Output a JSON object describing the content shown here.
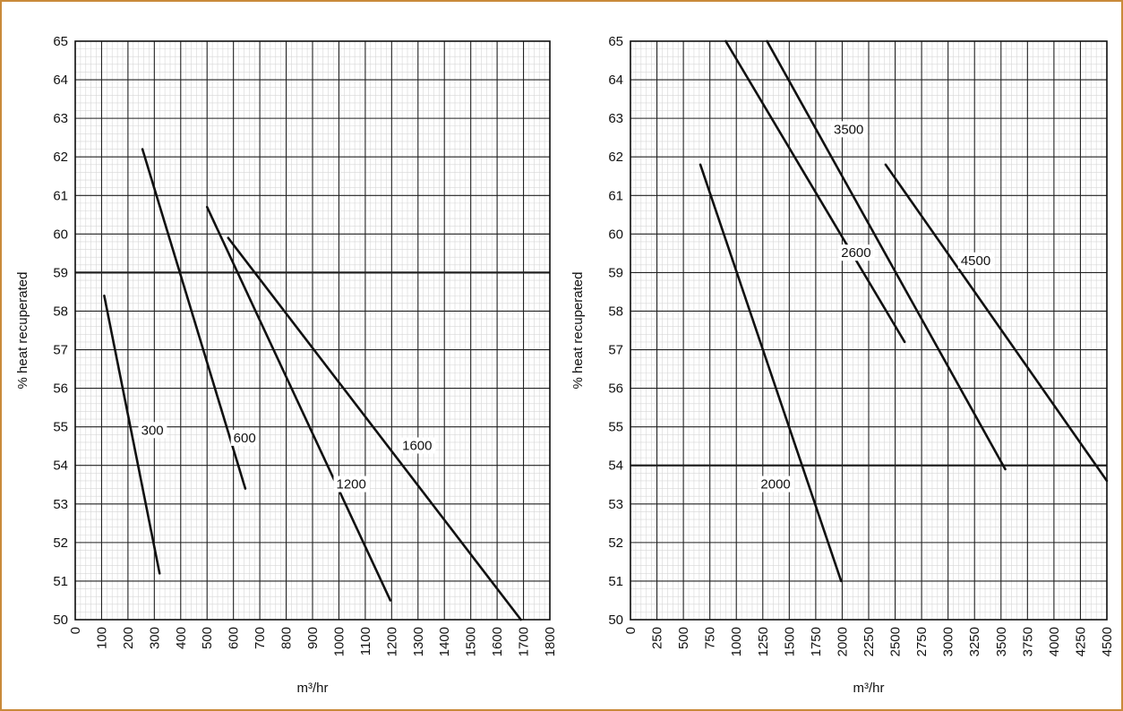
{
  "chart_data": [
    {
      "type": "line",
      "xlabel": "m³/hr",
      "ylabel": "% heat recuperated",
      "xlim": [
        0,
        1800
      ],
      "ylim": [
        50,
        65
      ],
      "x_ticks": [
        "0",
        "100",
        "200",
        "300",
        "400",
        "500",
        "600",
        "700",
        "800",
        "900",
        "1000",
        "1100",
        "1200",
        "1300",
        "1400",
        "1500",
        "1600",
        "1700",
        "1800"
      ],
      "y_ticks": [
        "50",
        "51",
        "52",
        "53",
        "54",
        "55",
        "56",
        "57",
        "58",
        "59",
        "60",
        "61",
        "62",
        "63",
        "64",
        "65"
      ],
      "grid": true,
      "emphasized_gridline_y": 59,
      "series": [
        {
          "name": "300",
          "color": "#111111",
          "points": [
            [
              110,
              58.4
            ],
            [
              320,
              51.2
            ]
          ],
          "label_at": [
            250,
            54.8
          ]
        },
        {
          "name": "600",
          "color": "#111111",
          "points": [
            [
              255,
              62.2
            ],
            [
              645,
              53.4
            ]
          ],
          "label_at": [
            600,
            54.6
          ]
        },
        {
          "name": "1200",
          "color": "#111111",
          "points": [
            [
              500,
              60.7
            ],
            [
              1195,
              50.5
            ]
          ],
          "label_at": [
            990,
            53.4
          ]
        },
        {
          "name": "1600",
          "color": "#111111",
          "points": [
            [
              580,
              59.9
            ],
            [
              1690,
              50.0
            ]
          ],
          "label_at": [
            1240,
            54.4
          ]
        }
      ]
    },
    {
      "type": "line",
      "xlabel": "m³/hr",
      "ylabel": "% heat recuperated",
      "xlim": [
        0,
        4500
      ],
      "ylim": [
        50,
        65
      ],
      "x_ticks": [
        "0",
        "250",
        "500",
        "750",
        "1000",
        "1250",
        "1500",
        "1750",
        "2000",
        "2250",
        "2500",
        "2750",
        "3000",
        "3250",
        "3500",
        "3750",
        "4000",
        "4250",
        "4500"
      ],
      "y_ticks": [
        "50",
        "51",
        "52",
        "53",
        "54",
        "55",
        "56",
        "57",
        "58",
        "59",
        "60",
        "61",
        "62",
        "63",
        "64",
        "65"
      ],
      "grid": true,
      "emphasized_gridline_y": 54,
      "series": [
        {
          "name": "2000",
          "color": "#111111",
          "points": [
            [
              660,
              61.8
            ],
            [
              1990,
              51.0
            ]
          ],
          "label_at": [
            1230,
            53.4
          ]
        },
        {
          "name": "2600",
          "color": "#111111",
          "points": [
            [
              900,
              65.0
            ],
            [
              2590,
              57.2
            ]
          ],
          "label_at": [
            1990,
            59.4
          ]
        },
        {
          "name": "3500",
          "color": "#111111",
          "points": [
            [
              1290,
              65.0
            ],
            [
              3540,
              53.9
            ]
          ],
          "label_at": [
            1920,
            62.6
          ]
        },
        {
          "name": "4500",
          "color": "#111111",
          "points": [
            [
              2410,
              61.8
            ],
            [
              4500,
              53.6
            ]
          ],
          "label_at": [
            3120,
            59.2
          ]
        }
      ]
    }
  ]
}
